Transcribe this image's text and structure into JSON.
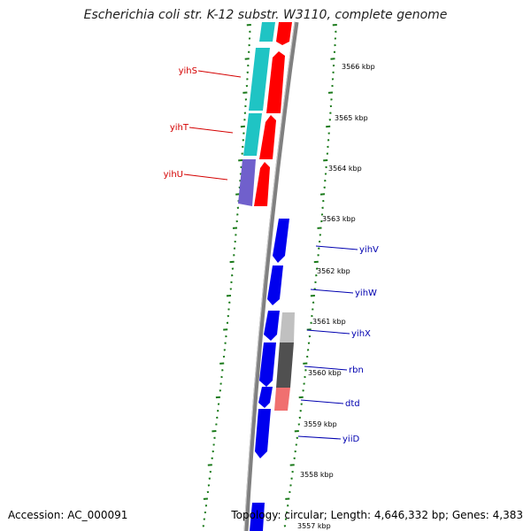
{
  "header": {
    "title": "Escherichia coli str. K-12 substr. W3110, complete genome"
  },
  "footer": {
    "accession": "Accession: AC_000091",
    "summary": "Topology: circular; Length: 4,646,332 bp; Genes: 4,383"
  },
  "colors": {
    "backbone": "#808080",
    "tick": "#1a7a1a",
    "cyan_gene": "#1fc4c4",
    "red_gene": "#ff0000",
    "purple_gene": "#7060cc",
    "blue_gene": "#0000ee",
    "light_gray_gene": "#c0c0c0",
    "dark_gray_gene": "#505050",
    "salmon_gene": "#f07070",
    "left_label": "#d40000",
    "right_label": "#0000b0"
  },
  "scale": {
    "unit": "kbp",
    "labels": [
      "3566 kbp",
      "3565 kbp",
      "3564 kbp",
      "3563 kbp",
      "3562 kbp",
      "3561 kbp",
      "3560 kbp",
      "3559 kbp",
      "3558 kbp",
      "3557 kbp"
    ]
  },
  "gene_labels": {
    "left": [
      "yihS",
      "yihT",
      "yihU"
    ],
    "right": [
      "yihV",
      "yihW",
      "yihX",
      "rbn",
      "dtd",
      "yiiD"
    ]
  }
}
